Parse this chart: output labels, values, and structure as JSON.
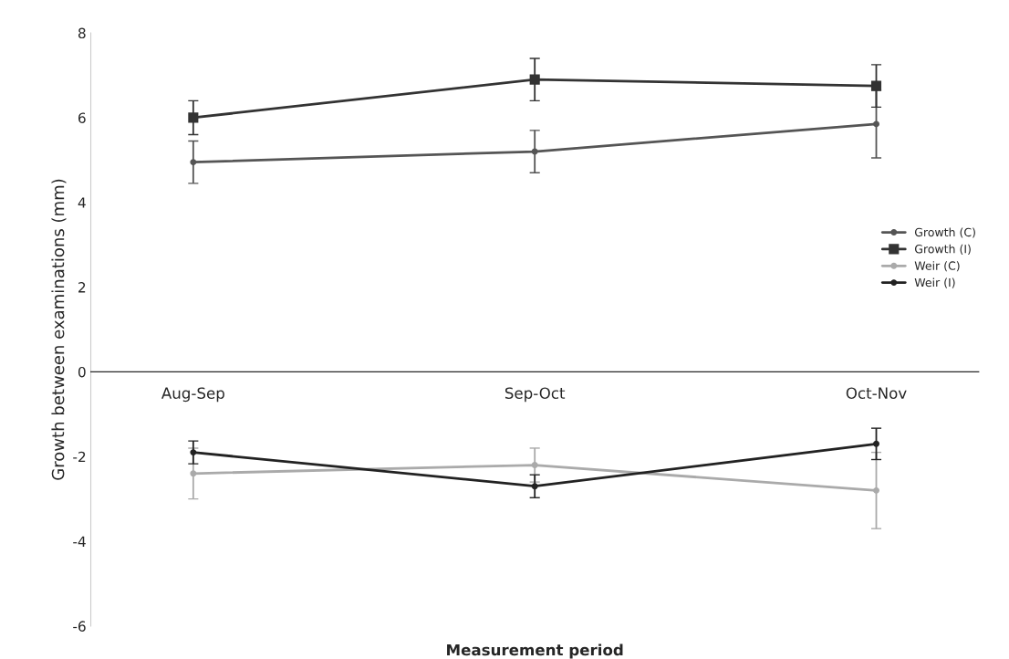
{
  "chart_data": {
    "type": "line",
    "xlabel": "Measurement period",
    "ylabel": "Growth between examinations (mm)",
    "categories": [
      "Aug-Sep",
      "Sep-Oct",
      "Oct-Nov"
    ],
    "series": [
      {
        "name": "Growth (C)",
        "color": "#555555",
        "marker": "circle",
        "values": [
          4.95,
          5.2,
          5.85
        ],
        "errors": [
          0.5,
          0.5,
          0.8
        ]
      },
      {
        "name": "Growth (I)",
        "color": "#333333",
        "marker": "square",
        "values": [
          6.0,
          6.9,
          6.75
        ],
        "errors": [
          0.4,
          0.5,
          0.5
        ]
      },
      {
        "name": "Weir (C)",
        "color": "#aaaaaa",
        "marker": "circle",
        "values": [
          -2.4,
          -2.2,
          -2.8
        ],
        "errors": [
          0.6,
          0.4,
          0.9
        ]
      },
      {
        "name": "Weir (I)",
        "color": "#222222",
        "marker": "circle",
        "values": [
          -1.9,
          -2.7,
          -1.7
        ],
        "errors": [
          0.27,
          0.27,
          0.37
        ]
      }
    ],
    "ylim": [
      -6,
      8
    ],
    "yticks": [
      -6,
      -4,
      -2,
      0,
      2,
      4,
      6,
      8
    ],
    "grid": false,
    "legend": "right",
    "line_style": "solid"
  }
}
